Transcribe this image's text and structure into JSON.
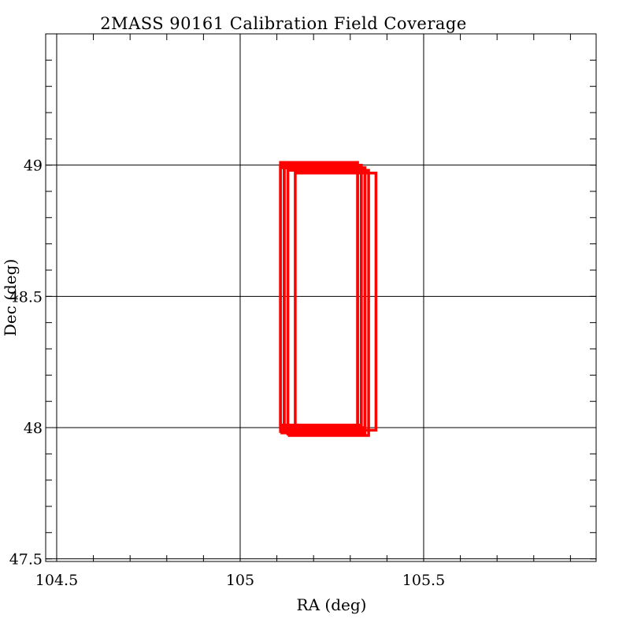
{
  "chart_data": {
    "type": "line",
    "title": "2MASS 90161 Calibration Field Coverage",
    "xlabel": "RA (deg)",
    "ylabel": "Dec (deg)",
    "xlim": [
      104.47,
      105.97
    ],
    "ylim": [
      47.49,
      49.5
    ],
    "grid": true,
    "x_major_ticks": [
      104.5,
      105,
      105.5
    ],
    "x_tick_labels": [
      "104.5",
      "105",
      "105.5"
    ],
    "x_minor_step": 0.1,
    "y_major_ticks": [
      47.5,
      48,
      48.5,
      49
    ],
    "y_tick_labels": [
      "47.5",
      "48",
      "48.5",
      "49"
    ],
    "y_minor_step": 0.1,
    "series_color": "#ff0000",
    "series": [
      {
        "x": [
          105.11,
          105.33,
          105.33,
          105.11,
          105.11
        ],
        "y": [
          47.99,
          47.99,
          49.0,
          49.0,
          47.99
        ]
      },
      {
        "x": [
          105.12,
          105.34,
          105.34,
          105.12,
          105.12
        ],
        "y": [
          47.98,
          47.98,
          48.99,
          48.99,
          47.98
        ]
      },
      {
        "x": [
          105.11,
          105.32,
          105.32,
          105.11,
          105.11
        ],
        "y": [
          48.0,
          48.0,
          49.01,
          49.01,
          48.0
        ]
      },
      {
        "x": [
          105.15,
          105.37,
          105.37,
          105.15,
          105.15
        ],
        "y": [
          47.99,
          47.99,
          48.97,
          48.97,
          47.99
        ]
      },
      {
        "x": [
          105.13,
          105.35,
          105.35,
          105.13,
          105.13
        ],
        "y": [
          47.97,
          47.97,
          48.98,
          48.98,
          47.97
        ]
      },
      {
        "x": [
          105.11,
          105.33,
          105.33,
          105.11,
          105.11
        ],
        "y": [
          48.01,
          48.01,
          48.99,
          48.99,
          48.01
        ]
      },
      {
        "x": [
          105.12,
          105.33,
          105.33,
          105.12,
          105.12
        ],
        "y": [
          47.98,
          47.98,
          48.99,
          48.99,
          47.98
        ]
      },
      {
        "x": [
          105.11,
          105.32,
          105.32,
          105.11,
          105.11
        ],
        "y": [
          47.99,
          47.99,
          49.0,
          49.0,
          47.99
        ]
      },
      {
        "x": [
          105.12,
          105.34,
          105.34,
          105.12,
          105.12
        ],
        "y": [
          48.0,
          48.0,
          48.99,
          48.99,
          48.0
        ]
      },
      {
        "x": [
          105.11,
          105.33,
          105.33,
          105.11,
          105.11
        ],
        "y": [
          47.98,
          47.98,
          49.0,
          49.0,
          47.98
        ]
      }
    ]
  }
}
